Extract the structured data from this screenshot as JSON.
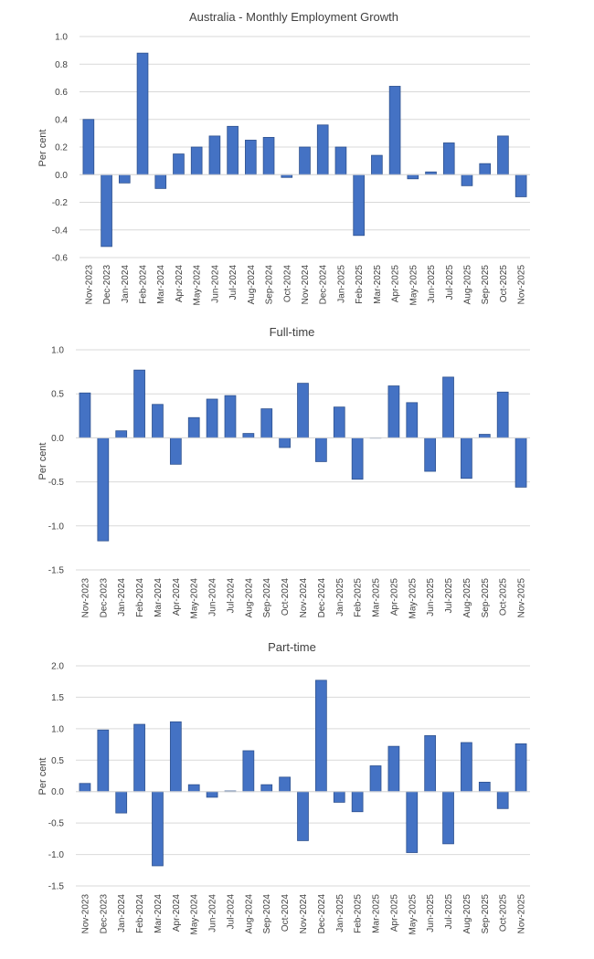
{
  "colors": {
    "bar": "#4472c4",
    "grid": "#d9d9d9",
    "text": "#404040"
  },
  "chart_data": [
    {
      "type": "bar",
      "title": "Australia - Monthly Employment Growth",
      "ylabel": "Per cent",
      "xlabel": "",
      "ylim": [
        -0.6,
        1.0
      ],
      "yticks": [
        "1.0",
        "0.8",
        "0.6",
        "0.4",
        "0.2",
        "0.0",
        "-0.2",
        "-0.4",
        "-0.6"
      ],
      "grid": true,
      "categories": [
        "Nov-2023",
        "Dec-2023",
        "Jan-2024",
        "Feb-2024",
        "Mar-2024",
        "Apr-2024",
        "May-2024",
        "Jun-2024",
        "Jul-2024",
        "Aug-2024",
        "Sep-2024",
        "Oct-2024",
        "Nov-2024",
        "Dec-2024",
        "Jan-2025",
        "Feb-2025",
        "Mar-2025",
        "Apr-2025",
        "May-2025",
        "Jun-2025",
        "Jul-2025",
        "Aug-2025",
        "Sep-2025",
        "Oct-2025",
        "Nov-2025"
      ],
      "values": [
        0.4,
        -0.52,
        -0.06,
        0.88,
        -0.1,
        0.15,
        0.2,
        0.28,
        0.35,
        0.25,
        0.27,
        -0.02,
        0.2,
        0.36,
        0.2,
        -0.44,
        0.14,
        0.64,
        -0.03,
        0.02,
        0.23,
        -0.08,
        0.08,
        0.28,
        -0.16
      ]
    },
    {
      "type": "bar",
      "title": "Full-time",
      "ylabel": "Per cent",
      "xlabel": "",
      "ylim": [
        -1.5,
        1.0
      ],
      "yticks": [
        "1.0",
        "0.5",
        "0.0",
        "-0.5",
        "-1.0",
        "-1.5"
      ],
      "grid": true,
      "categories": [
        "Nov-2023",
        "Dec-2023",
        "Jan-2024",
        "Feb-2024",
        "Mar-2024",
        "Apr-2024",
        "May-2024",
        "Jun-2024",
        "Jul-2024",
        "Aug-2024",
        "Sep-2024",
        "Oct-2024",
        "Nov-2024",
        "Dec-2024",
        "Jan-2025",
        "Feb-2025",
        "Mar-2025",
        "Apr-2025",
        "May-2025",
        "Jun-2025",
        "Jul-2025",
        "Aug-2025",
        "Sep-2025",
        "Oct-2025",
        "Nov-2025"
      ],
      "values": [
        0.51,
        -1.17,
        0.08,
        0.77,
        0.38,
        -0.3,
        0.23,
        0.44,
        0.48,
        0.05,
        0.33,
        -0.11,
        0.62,
        -0.27,
        0.35,
        -0.47,
        0.0,
        0.59,
        0.4,
        -0.38,
        0.69,
        -0.46,
        0.04,
        0.52,
        -0.56
      ]
    },
    {
      "type": "bar",
      "title": "Part-time",
      "ylabel": "Per cent",
      "xlabel": "",
      "ylim": [
        -1.5,
        2.0
      ],
      "yticks": [
        "2.0",
        "1.5",
        "1.0",
        "0.5",
        "0.0",
        "-0.5",
        "-1.0",
        "-1.5"
      ],
      "grid": true,
      "categories": [
        "Nov-2023",
        "Dec-2023",
        "Jan-2024",
        "Feb-2024",
        "Mar-2024",
        "Apr-2024",
        "May-2024",
        "Jun-2024",
        "Jul-2024",
        "Aug-2024",
        "Sep-2024",
        "Oct-2024",
        "Nov-2024",
        "Dec-2024",
        "Jan-2025",
        "Feb-2025",
        "Mar-2025",
        "Apr-2025",
        "May-2025",
        "Jun-2025",
        "Jul-2025",
        "Aug-2025",
        "Sep-2025",
        "Oct-2025",
        "Nov-2025"
      ],
      "values": [
        0.13,
        0.98,
        -0.34,
        1.07,
        -1.18,
        1.11,
        0.11,
        -0.09,
        0.01,
        0.65,
        0.11,
        0.23,
        -0.78,
        1.77,
        -0.17,
        -0.32,
        0.41,
        0.72,
        -0.97,
        0.89,
        -0.83,
        0.78,
        0.15,
        -0.27,
        0.76
      ]
    }
  ]
}
